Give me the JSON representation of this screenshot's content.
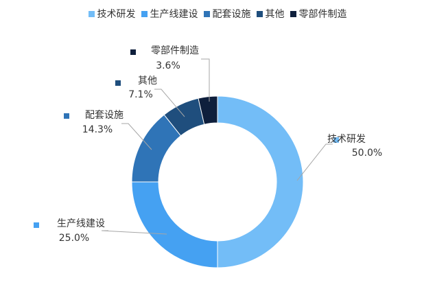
{
  "chart_data": {
    "type": "pie",
    "variant": "donut",
    "title": "",
    "legend_position": "top",
    "categories": [
      "技术研发",
      "生产线建设",
      "配套设施",
      "其他",
      "零部件制造"
    ],
    "values": [
      50.0,
      25.0,
      14.3,
      7.1,
      3.6
    ],
    "value_labels": [
      "50.0%",
      "25.0%",
      "14.3%",
      "7.1%",
      "3.6%"
    ],
    "colors": [
      "#73BDF7",
      "#45A1F2",
      "#2F74B7",
      "#1F4E7D",
      "#0F1F3C"
    ]
  }
}
